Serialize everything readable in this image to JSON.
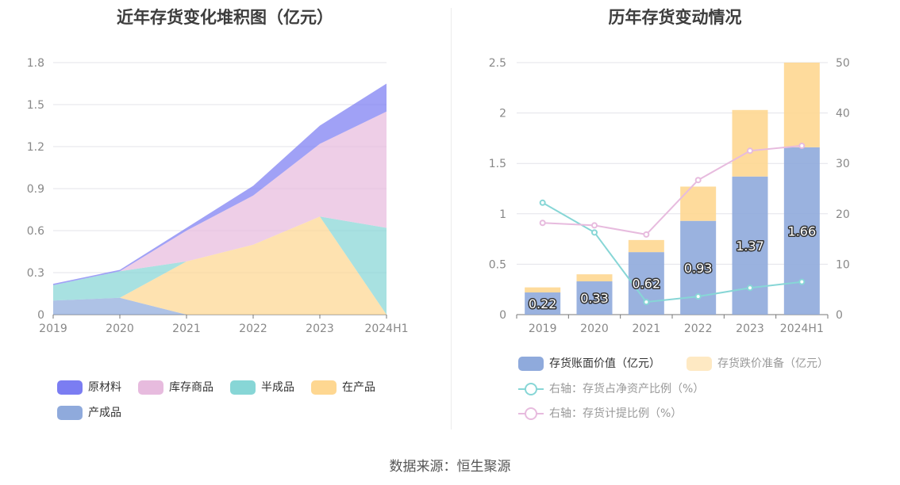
{
  "source": "数据来源：恒生聚源",
  "chart_data": [
    {
      "type": "area",
      "stacked": true,
      "title": "近年存货变化堆积图（亿元）",
      "categories": [
        "2019",
        "2020",
        "2021",
        "2022",
        "2023",
        "2024H1"
      ],
      "ylim": [
        0,
        1.8
      ],
      "yticks": [
        "0",
        "0.3",
        "0.6",
        "0.9",
        "1.2",
        "1.5",
        "1.8"
      ],
      "grid": true,
      "legend_position": "bottom",
      "series": [
        {
          "name": "产成品",
          "color": "#8faadc",
          "values": [
            0.1,
            0.12,
            0,
            0,
            0,
            0
          ]
        },
        {
          "name": "在产品",
          "color": "#fed791",
          "values": [
            0,
            0,
            0.38,
            0.5,
            0.7,
            0
          ]
        },
        {
          "name": "半成品",
          "color": "#87d6d6",
          "values": [
            0.11,
            0.19,
            0,
            0,
            0,
            0.62
          ]
        },
        {
          "name": "库存商品",
          "color": "#e7bbde",
          "values": [
            0,
            0,
            0.22,
            0.35,
            0.52,
            0.83
          ]
        },
        {
          "name": "原材料",
          "color": "#7b7df2",
          "values": [
            0.01,
            0.01,
            0.02,
            0.07,
            0.13,
            0.2
          ]
        }
      ],
      "legend_order": [
        "原材料",
        "库存商品",
        "半成品",
        "在产品",
        "产成品"
      ]
    },
    {
      "type": "bar",
      "stacked": true,
      "title": "历年存货变动情况",
      "categories": [
        "2019",
        "2020",
        "2021",
        "2022",
        "2023",
        "2024H1"
      ],
      "ylim": [
        0,
        2.5
      ],
      "yticks": [
        "0",
        "0.5",
        "1",
        "1.5",
        "2",
        "2.5"
      ],
      "y2lim": [
        0,
        50
      ],
      "y2ticks": [
        "0",
        "10",
        "20",
        "30",
        "40",
        "50"
      ],
      "grid": true,
      "legend_position": "bottom",
      "series": [
        {
          "name": "存货账面价值（亿元）",
          "kind": "bar",
          "color": "#8faadc",
          "values": [
            0.22,
            0.33,
            0.62,
            0.93,
            1.37,
            1.66
          ],
          "labels": [
            "0.22",
            "0.33",
            "0.62",
            "0.93",
            "1.37",
            "1.66"
          ]
        },
        {
          "name": "存货跌价准备（亿元）",
          "kind": "bar",
          "color": "#fed791",
          "values": [
            0.05,
            0.07,
            0.12,
            0.34,
            0.66,
            0.84
          ]
        },
        {
          "name": "右轴：存货占净资产比例（%）",
          "kind": "line",
          "axis": "right",
          "color": "#87d6d6",
          "values": [
            22.2,
            16.3,
            2.5,
            3.6,
            5.3,
            6.5
          ]
        },
        {
          "name": "右轴：存货计提比例（%）",
          "kind": "line",
          "axis": "right",
          "color": "#e7bbde",
          "values": [
            18.2,
            17.7,
            15.9,
            26.7,
            32.5,
            33.5
          ]
        }
      ]
    }
  ]
}
